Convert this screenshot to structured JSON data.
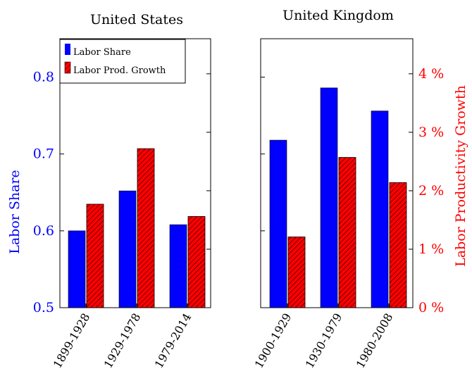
{
  "chart_data": [
    {
      "type": "bar",
      "title": "United States",
      "categories": [
        "1899-1928",
        "1929-1978",
        "1979-2014"
      ],
      "series": [
        {
          "name": "Labor Share",
          "axis": "left",
          "color": "#0000ff",
          "pattern": "solid",
          "values": [
            0.6,
            0.652,
            0.608
          ]
        },
        {
          "name": "Labor Prod. Growth",
          "axis": "right",
          "color": "#ff0000",
          "pattern": "hatched",
          "values": [
            1.77,
            2.72,
            1.56
          ]
        }
      ],
      "ylabel": "Labor Share",
      "ylim": [
        0.5,
        0.85
      ],
      "yticks": [
        "0.5",
        "0.6",
        "0.7",
        "0.8"
      ],
      "y2lim": [
        0,
        4.6
      ],
      "legend": "top-left",
      "grid": false
    },
    {
      "type": "bar",
      "title": "United Kingdom",
      "categories": [
        "1900-1929",
        "1930-1979",
        "1980-2008"
      ],
      "series": [
        {
          "name": "Labor Share",
          "axis": "left",
          "color": "#0000ff",
          "pattern": "solid",
          "values": [
            0.718,
            0.786,
            0.756
          ]
        },
        {
          "name": "Labor Prod. Growth",
          "axis": "right",
          "color": "#ff0000",
          "pattern": "hatched",
          "values": [
            1.21,
            2.57,
            2.14
          ]
        }
      ],
      "y2label": "Labor Productivity Growth",
      "ylim": [
        0.5,
        0.85
      ],
      "y2lim": [
        0,
        4.6
      ],
      "y2ticks": [
        "0 %",
        "1 %",
        "2 %",
        "3 %",
        "4 %"
      ],
      "grid": false
    }
  ],
  "colors": {
    "labor_share": "#0000ff",
    "prod_growth": "#ff0000",
    "axis_label_left": "#0000ff",
    "axis_label_right": "#ff0000"
  }
}
